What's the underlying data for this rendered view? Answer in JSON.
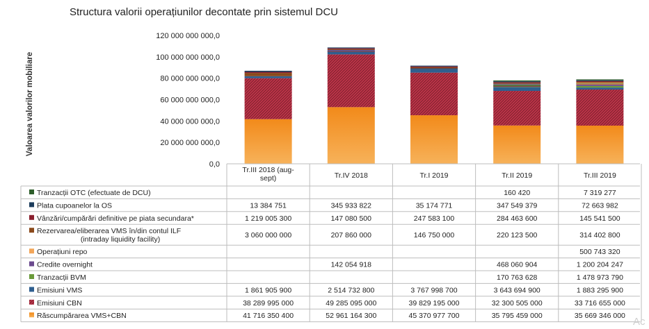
{
  "chart_data": {
    "type": "bar",
    "stacked": true,
    "title": "Structura valorii operațiunilor decontate prin sistemul DCU",
    "ylabel": "Valoarea valorilor mobiliare",
    "ylim": [
      0,
      120000000000
    ],
    "yticks": [
      0,
      20000000000,
      40000000000,
      60000000000,
      80000000000,
      100000000000,
      120000000000
    ],
    "ytick_labels": [
      "0,0",
      "20 000 000 000,0",
      "40 000 000 000,0",
      "60 000 000 000,0",
      "80 000 000 000,0",
      "100 000 000 000,0",
      "120 000 000 000,0"
    ],
    "categories": [
      "Tr.III 2018 (aug-sept)",
      "Tr.IV 2018",
      "Tr.I 2019",
      "Tr.II 2019",
      "Tr.III 2019"
    ],
    "table_legend_position": "bottom",
    "series": [
      {
        "name": "Tranzacții OTC (efectuate de DCU)",
        "color": "#2e5e2b",
        "pattern": "solid",
        "values": [
          null,
          null,
          null,
          160420,
          7319277
        ],
        "labels": [
          "",
          "",
          "",
          "160 420",
          "7 319 277"
        ]
      },
      {
        "name": "Plata cupoanelor la OS",
        "color": "#1d3d5c",
        "pattern": "solid",
        "values": [
          13384751,
          345933822,
          35174771,
          347549379,
          72663982
        ],
        "labels": [
          "13 384 751",
          "345 933 822",
          "35 174 771",
          "347 549 379",
          "72 663 982"
        ]
      },
      {
        "name": "Vânzări/cumpărări definitive pe piata secundara*",
        "color": "#8a1f2e",
        "pattern": "solid",
        "values": [
          1219005300,
          147080500,
          247583100,
          284463600,
          145541500
        ],
        "labels": [
          "1 219 005 300",
          "147 080 500",
          "247 583 100",
          "284 463 600",
          "145 541 500"
        ]
      },
      {
        "name": "Rezervarea/eliberarea VMS în/din contul ILF (intraday liquidity facility)",
        "color": "#8b4a1c",
        "pattern": "solid",
        "values": [
          3060000000,
          207860000,
          146750000,
          220123500,
          314402800
        ],
        "labels": [
          "3 060 000 000",
          "207 860 000",
          "146 750 000",
          "220 123 500",
          "314 402 800"
        ]
      },
      {
        "name": "Operațiuni repo",
        "color": "#f2a65a",
        "pattern": "solid",
        "values": [
          null,
          null,
          null,
          null,
          500743320
        ],
        "labels": [
          "",
          "",
          "",
          "",
          "500 743 320"
        ]
      },
      {
        "name": "Credite overnight",
        "color": "#6b4a8e",
        "pattern": "solid",
        "values": [
          null,
          142054918,
          null,
          468060904,
          1200204247
        ],
        "labels": [
          "",
          "142 054 918",
          "",
          "468 060 904",
          "1 200 204 247"
        ]
      },
      {
        "name": "Tranzacții BVM",
        "color": "#6a9a3a",
        "pattern": "solid",
        "values": [
          null,
          null,
          null,
          170763628,
          1478973790
        ],
        "labels": [
          "",
          "",
          "",
          "170 763 628",
          "1 478 973 790"
        ]
      },
      {
        "name": "Emisiuni VMS",
        "color": "#2f5f8f",
        "pattern": "solid",
        "values": [
          1861905900,
          2514732800,
          3767998700,
          3643694900,
          1883295900
        ],
        "labels": [
          "1 861 905 900",
          "2 514 732 800",
          "3 767 998 700",
          "3 643 694 900",
          "1 883 295 900"
        ]
      },
      {
        "name": "Emisiuni CBN",
        "color": "#c0354a",
        "pattern": "hatch",
        "values": [
          38289995000,
          49285095000,
          39829195000,
          32300505000,
          33716655000
        ],
        "labels": [
          "38 289 995 000",
          "49 285 095 000",
          "39 829 195 000",
          "32 300 505 000",
          "33 716 655 000"
        ]
      },
      {
        "name": "Răscumpărarea VMS+CBN",
        "color": "#f28a1a",
        "pattern": "gradient",
        "values": [
          41716350400,
          52961164300,
          45370977700,
          35795459000,
          35669346000
        ],
        "labels": [
          "41 716 350 400",
          "52 961 164 300",
          "45 370 977 700",
          "35 795 459 000",
          "35 669 346 000"
        ]
      }
    ]
  },
  "watermark": "Ac"
}
